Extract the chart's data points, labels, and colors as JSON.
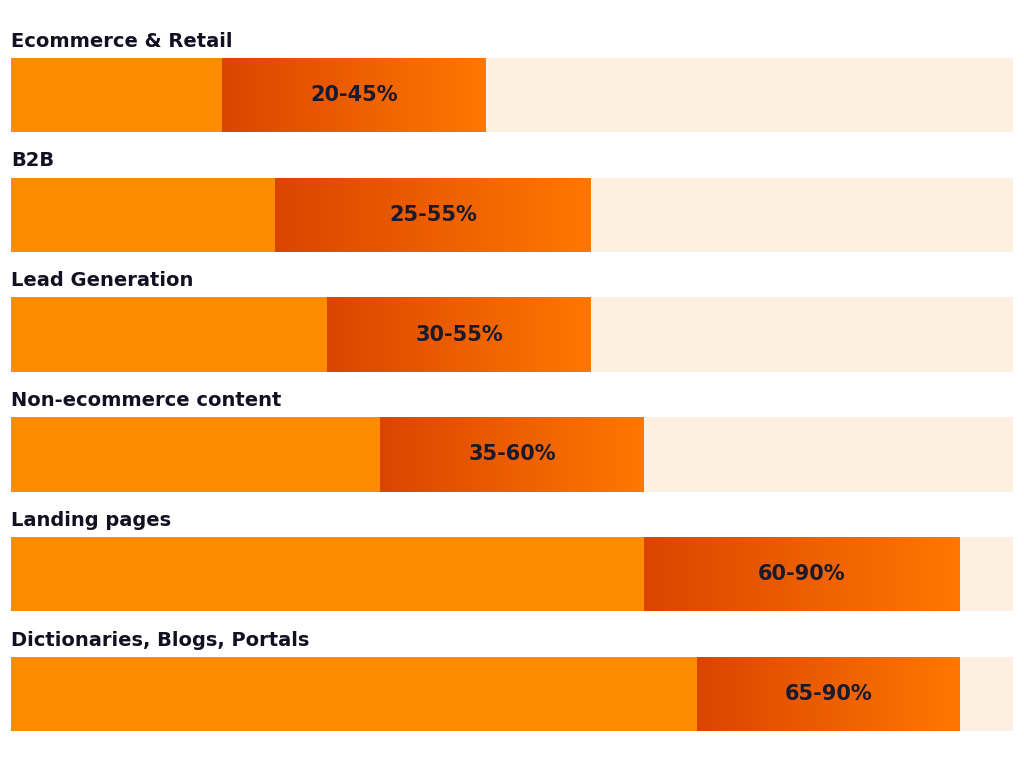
{
  "categories": [
    "Ecommerce & Retail",
    "B2B",
    "Lead Generation",
    "Non-ecommerce content",
    "Landing pages",
    "Dictionaries, Blogs, Portals"
  ],
  "ranges": [
    [
      20,
      45
    ],
    [
      25,
      55
    ],
    [
      30,
      55
    ],
    [
      35,
      60
    ],
    [
      60,
      90
    ],
    [
      65,
      90
    ]
  ],
  "labels": [
    "20-45%",
    "25-55%",
    "30-55%",
    "35-60%",
    "60-90%",
    "65-90%"
  ],
  "x_max": 95,
  "bar_height": 0.62,
  "color_left": "#FF8C00",
  "color_mid_left": "#D94500",
  "color_mid_right": "#FF7700",
  "color_right": "#FDF0E0",
  "label_color": "#1A1A2E",
  "title_color": "#111122",
  "background_color": "#FFFFFF",
  "label_fontsize": 15,
  "title_fontsize": 14
}
